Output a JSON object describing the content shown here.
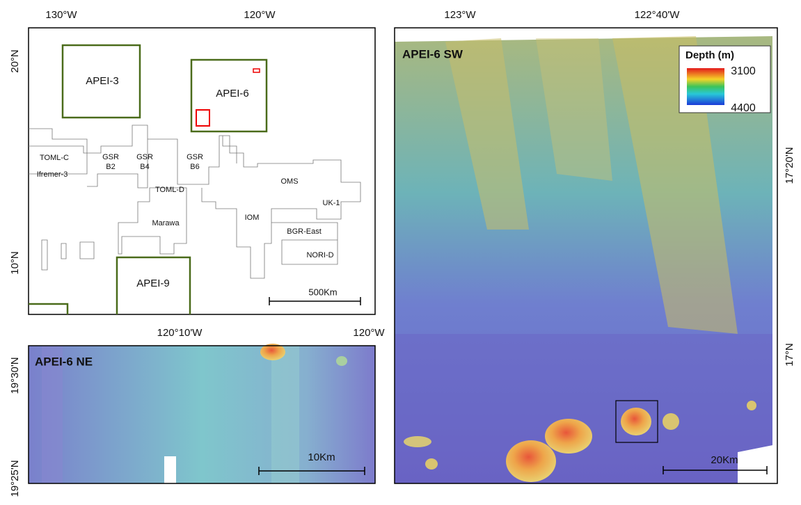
{
  "overview": {
    "lon_labels": [
      "130°W",
      "120°W"
    ],
    "lat_labels": [
      "20°N",
      "10°N"
    ],
    "areas": [
      "APEI-3",
      "APEI-6",
      "APEI-9"
    ],
    "contractors": [
      "TOML-C",
      "Ifremer-3",
      [
        "GSR",
        "B2"
      ],
      [
        "GSR",
        "B4"
      ],
      [
        "GSR",
        "B6"
      ],
      "TOML-D",
      "OMS",
      "UK-1",
      "IOM",
      "Marawa",
      "BGR-East",
      "NORI-D"
    ],
    "scale": "500Km"
  },
  "ne_panel": {
    "title": "APEI-6 NE",
    "lon_labels": [
      "120°10'W",
      "120°W"
    ],
    "lat_labels": [
      "19°30'N",
      "19°25'N"
    ],
    "scale": "10Km"
  },
  "sw_panel": {
    "title": "APEI-6 SW",
    "lon_labels": [
      "123°W",
      "122°40'W"
    ],
    "lat_labels": [
      "17°20'N",
      "17°N"
    ],
    "legend": {
      "title": "Depth (m)",
      "top": "3100",
      "bottom": "4400"
    },
    "scale": "20Km"
  }
}
